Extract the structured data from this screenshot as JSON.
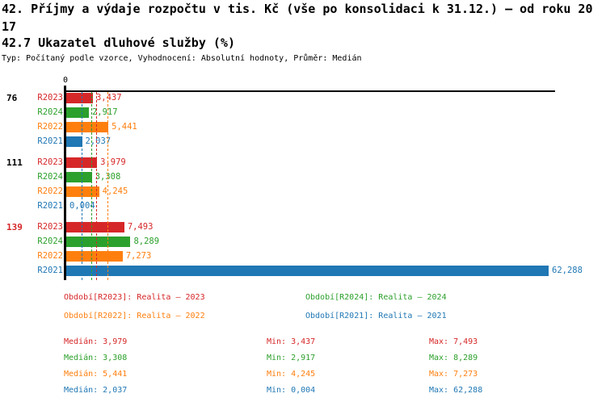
{
  "header": {
    "title_lines": [
      "42. Příjmy a výdaje rozpočtu v tis. Kč (vše po konsolidaci k 31.12.) – od roku 20",
      "17"
    ],
    "subtitle": "42.7 Ukazatel dluhové služby (%)",
    "meta": "Typ: Počítaný podle vzorce, Vyhodnocení: Absolutní hodnoty, Průměr: Medián"
  },
  "chart_data": {
    "type": "bar",
    "orientation": "horizontal",
    "title": "42.7 Ukazatel dluhové služby (%)",
    "unit": "%",
    "zero_label": "0",
    "xlim": [
      0,
      62.288
    ],
    "grid": false,
    "series_colors": {
      "R2023": "#d62728",
      "R2024": "#2ca02c",
      "R2022": "#ff7f0e",
      "R2021": "#1f77b4"
    },
    "groups": [
      {
        "label": "76",
        "label_color": "#000000",
        "bars": [
          {
            "series": "R2023",
            "value": 3.437,
            "display": "3,437"
          },
          {
            "series": "R2024",
            "value": 2.917,
            "display": "2,917"
          },
          {
            "series": "R2022",
            "value": 5.441,
            "display": "5,441"
          },
          {
            "series": "R2021",
            "value": 2.037,
            "display": "2,037"
          }
        ]
      },
      {
        "label": "111",
        "label_color": "#000000",
        "bars": [
          {
            "series": "R2023",
            "value": 3.979,
            "display": "3,979"
          },
          {
            "series": "R2024",
            "value": 3.308,
            "display": "3,308"
          },
          {
            "series": "R2022",
            "value": 4.245,
            "display": "4,245"
          },
          {
            "series": "R2021",
            "value": 0.004,
            "display": "0,004"
          }
        ]
      },
      {
        "label": "139",
        "label_color": "#d62728",
        "bars": [
          {
            "series": "R2023",
            "value": 7.493,
            "display": "7,493"
          },
          {
            "series": "R2024",
            "value": 8.289,
            "display": "8,289"
          },
          {
            "series": "R2022",
            "value": 7.273,
            "display": "7,273"
          },
          {
            "series": "R2021",
            "value": 62.288,
            "display": "62,288"
          }
        ]
      }
    ],
    "median_lines": [
      {
        "series": "R2023",
        "value": 3.979
      },
      {
        "series": "R2024",
        "value": 3.308
      },
      {
        "series": "R2022",
        "value": 5.441
      },
      {
        "series": "R2021",
        "value": 2.037
      }
    ]
  },
  "legend": {
    "items": [
      {
        "series": "R2023",
        "label": "Období[R2023]: Realita – 2023",
        "color": "#d62728"
      },
      {
        "series": "R2024",
        "label": "Období[R2024]: Realita – 2024",
        "color": "#2ca02c"
      },
      {
        "series": "R2022",
        "label": "Období[R2022]: Realita – 2022",
        "color": "#ff7f0e"
      },
      {
        "series": "R2021",
        "label": "Období[R2021]: Realita – 2021",
        "color": "#1f77b4"
      }
    ]
  },
  "stats": {
    "labels": {
      "median": "Medián",
      "min": "Min",
      "max": "Max"
    },
    "rows": [
      {
        "series": "R2023",
        "color": "#d62728",
        "median": "3,979",
        "min": "3,437",
        "max": "7,493"
      },
      {
        "series": "R2024",
        "color": "#2ca02c",
        "median": "3,308",
        "min": "2,917",
        "max": "8,289"
      },
      {
        "series": "R2022",
        "color": "#ff7f0e",
        "median": "5,441",
        "min": "4,245",
        "max": "7,273"
      },
      {
        "series": "R2021",
        "color": "#1f77b4",
        "median": "2,037",
        "min": "0,004",
        "max": "62,288"
      }
    ]
  }
}
